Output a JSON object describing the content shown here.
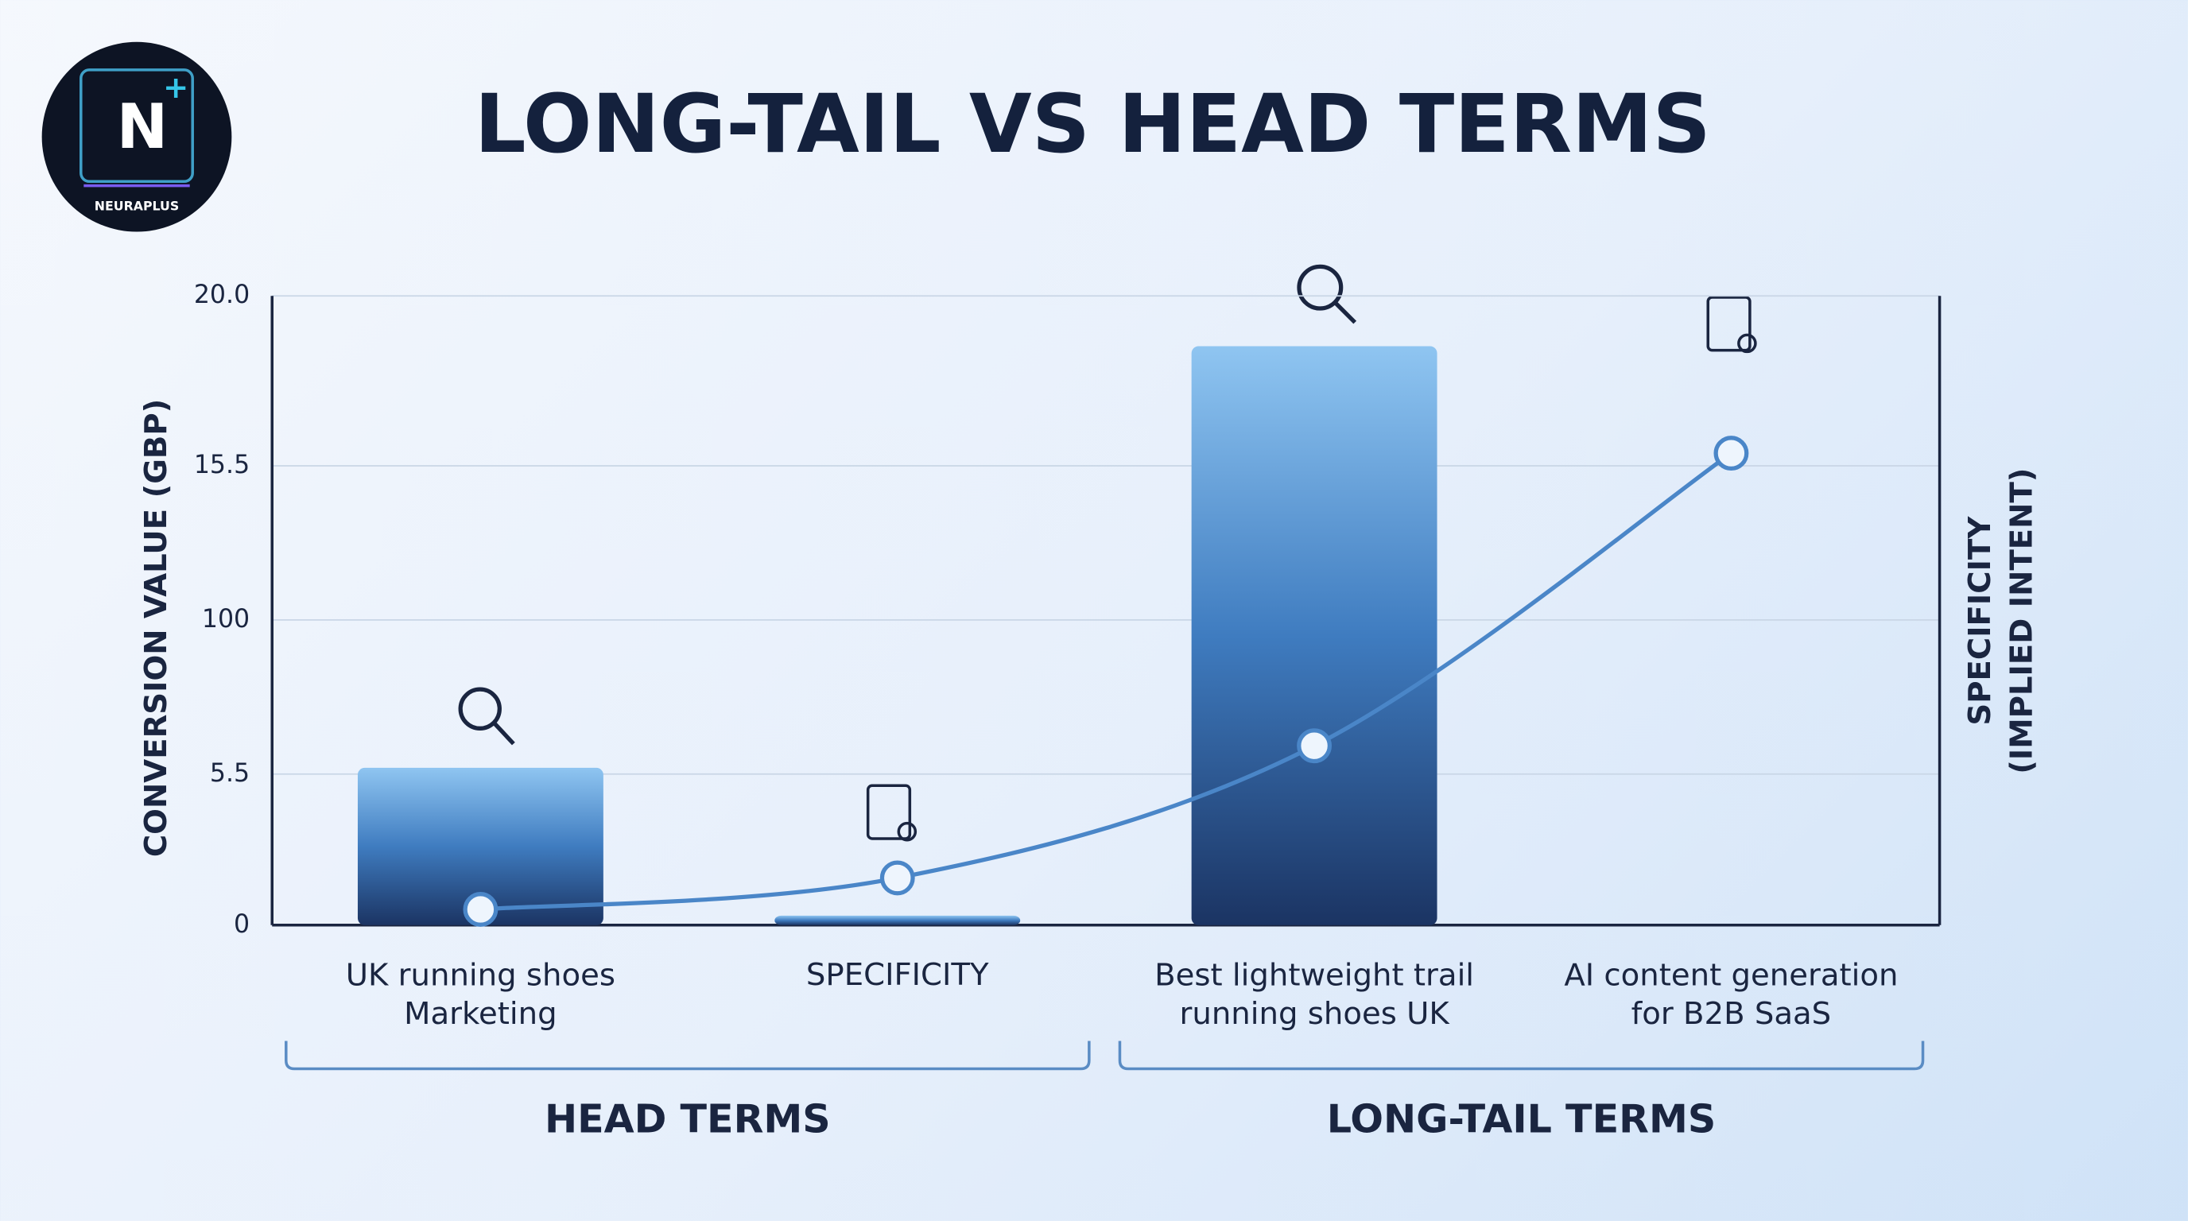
{
  "logo": {
    "letter": "N",
    "name": "NEURAPLUS"
  },
  "chart_data": {
    "type": "bar",
    "title": "LONG-TAIL VS HEAD TERMS",
    "y_label": "CONVERSION VALUE (GBP)",
    "y2_label": "SPECIFICITY\n(IMPLIED INTENT)",
    "categories": [
      "UK running shoes\nMarketing",
      "SPECIFICITY",
      "Best lightweight trail\nrunning shoes UK",
      "AI content generation\nfor B2B SaaS"
    ],
    "values": [
      5,
      0.3,
      18.4,
      null
    ],
    "color": "#2f6bb0",
    "line": {
      "axis": "y2",
      "color": "#4a86c8",
      "values": [
        0.5,
        1.5,
        5.7,
        15
      ]
    },
    "ylim": [
      0,
      20
    ],
    "yticks": [
      0,
      {
        "value": 4.8,
        "label": "5.5"
      },
      {
        "value": 9.7,
        "label": "100"
      },
      {
        "value": 14.6,
        "label": "15.5"
      },
      {
        "value": 20,
        "label": "20.0"
      }
    ],
    "y2lim": [
      0,
      20
    ],
    "grid": true,
    "groups": [
      {
        "label": "HEAD TERMS",
        "start": 0,
        "end": 1
      },
      {
        "label": "LONG-TAIL TERMS",
        "start": 2,
        "end": 3
      }
    ]
  }
}
